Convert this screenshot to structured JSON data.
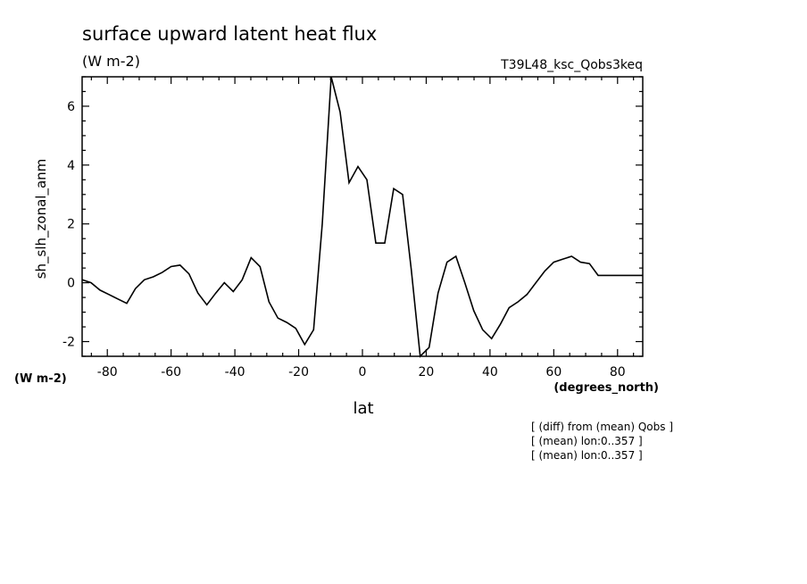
{
  "chart_data": {
    "type": "line",
    "title": "surface upward latent heat flux",
    "units": "(W m-2)",
    "run_label": "T39L48_ksc_Qobs3keq",
    "ylabel": "sh_slh_zonal_anm",
    "y_units_label": "(W m-2)",
    "xlabel": "lat",
    "x_units_label": "(degrees_north)",
    "notes": [
      "[ (diff) from (mean) Qobs ]",
      "[ (mean) lon:0..357 ]",
      "[ (mean) lon:0..357 ]"
    ],
    "xlim": [
      -87.9,
      87.9
    ],
    "ylim": [
      -2.5,
      7.0
    ],
    "x_ticks": [
      -80,
      -60,
      -40,
      -20,
      0,
      20,
      40,
      60,
      80
    ],
    "x_tick_labels": [
      "-80",
      "-60",
      "-40",
      "-20",
      "0",
      "20",
      "40",
      "60",
      "80"
    ],
    "y_ticks": [
      -2,
      0,
      2,
      4,
      6
    ],
    "y_tick_labels": [
      "-2",
      "0",
      "2",
      "4",
      "6"
    ],
    "series": [
      {
        "x": [
          -87.9,
          -85.1,
          -82.3,
          -79.5,
          -76.7,
          -73.9,
          -71.2,
          -68.4,
          -65.6,
          -62.8,
          -60.0,
          -57.2,
          -54.4,
          -51.6,
          -48.8,
          -46.0,
          -43.3,
          -40.5,
          -37.7,
          -34.9,
          -32.1,
          -29.3,
          -26.5,
          -23.7,
          -20.9,
          -18.1,
          -15.3,
          -12.6,
          -9.8,
          -7.0,
          -4.2,
          -1.4,
          1.4,
          4.2,
          7.0,
          9.8,
          12.6,
          15.3,
          18.1,
          20.9,
          23.7,
          26.5,
          29.3,
          32.1,
          34.9,
          37.7,
          40.5,
          43.3,
          46.0,
          48.8,
          51.6,
          54.4,
          57.2,
          60.0,
          62.8,
          65.6,
          68.4,
          71.2,
          73.9,
          76.7,
          79.5,
          82.3,
          85.1,
          87.9
        ],
        "values": [
          0.1,
          0.0,
          -0.25,
          -0.4,
          -0.55,
          -0.7,
          -0.2,
          0.1,
          0.2,
          0.35,
          0.55,
          0.6,
          0.3,
          -0.35,
          -0.75,
          -0.35,
          0.0,
          -0.3,
          0.1,
          0.85,
          0.55,
          -0.65,
          -1.2,
          -1.35,
          -1.55,
          -2.1,
          -1.6,
          2.0,
          7.0,
          5.8,
          3.4,
          3.95,
          3.5,
          1.35,
          1.35,
          3.2,
          3.0,
          0.45,
          -2.5,
          -2.2,
          -0.35,
          0.7,
          0.9,
          0.0,
          -0.95,
          -1.6,
          -1.9,
          -1.4,
          -0.85,
          -0.65,
          -0.4,
          0.0,
          0.4,
          0.7,
          0.8,
          0.9,
          0.7,
          0.65,
          0.25,
          0.25,
          0.25,
          0.25,
          0.25,
          0.25
        ]
      }
    ],
    "line_color": "#000000",
    "grid": false
  }
}
